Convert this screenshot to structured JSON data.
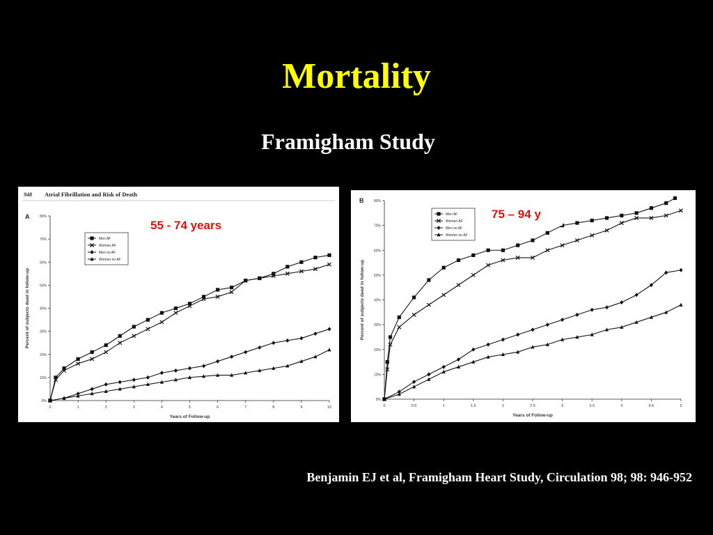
{
  "slide": {
    "title": "Mortality",
    "subtitle": "Framigham Study",
    "citation": "Benjamin EJ et al, Framigham Heart Study, Circulation 98; 98: 946-952",
    "title_color": "#ffff00",
    "label_color": "#e01010"
  },
  "chart_data": [
    {
      "type": "line",
      "panel": "A",
      "page_header": "948",
      "journal_title": "Atrial Fibrillation and Risk of Death",
      "annotation": "55 - 74 years",
      "xlabel": "Years of Follow-up",
      "ylabel": "Percent of subjects dead in follow-up",
      "xlim": [
        0,
        10
      ],
      "ylim": [
        0,
        80
      ],
      "xticks": [
        0,
        1,
        2,
        3,
        4,
        5,
        6,
        7,
        8,
        9,
        10
      ],
      "yticks": [
        "0%",
        "10%",
        "20%",
        "30%",
        "40%",
        "50%",
        "60%",
        "70%",
        "80%"
      ],
      "legend_position": "top-left",
      "series": [
        {
          "name": "Men AF",
          "marker": "square",
          "x": [
            0,
            0.2,
            0.5,
            1,
            1.5,
            2,
            2.5,
            3,
            3.5,
            4,
            4.5,
            5,
            5.5,
            6,
            6.5,
            7,
            7.5,
            8,
            8.5,
            9,
            9.5,
            10
          ],
          "y": [
            0,
            10,
            14,
            18,
            21,
            24,
            28,
            32,
            35,
            38,
            40,
            42,
            45,
            48,
            49,
            52,
            53,
            55,
            58,
            60,
            62,
            63
          ]
        },
        {
          "name": "Women AF",
          "marker": "x",
          "x": [
            0,
            0.2,
            0.5,
            1,
            1.5,
            2,
            2.5,
            3,
            3.5,
            4,
            4.5,
            5,
            5.5,
            6,
            6.5,
            7,
            7.5,
            8,
            8.5,
            9,
            9.5,
            10
          ],
          "y": [
            0,
            9,
            13,
            16,
            18,
            21,
            25,
            28,
            31,
            34,
            38,
            41,
            44,
            45,
            47,
            52,
            53,
            54,
            55,
            56,
            57,
            59
          ]
        },
        {
          "name": "Men no AF",
          "marker": "diamond",
          "x": [
            0,
            0.5,
            1,
            1.5,
            2,
            2.5,
            3,
            3.5,
            4,
            4.5,
            5,
            5.5,
            6,
            6.5,
            7,
            7.5,
            8,
            8.5,
            9,
            9.5,
            10
          ],
          "y": [
            0,
            1,
            3,
            5,
            7,
            8,
            9,
            10,
            12,
            13,
            14,
            15,
            17,
            19,
            21,
            23,
            25,
            26,
            27,
            29,
            31
          ]
        },
        {
          "name": "Women no AF",
          "marker": "triangle",
          "x": [
            0,
            0.5,
            1,
            1.5,
            2,
            2.5,
            3,
            3.5,
            4,
            4.5,
            5,
            5.5,
            6,
            6.5,
            7,
            7.5,
            8,
            8.5,
            9,
            9.5,
            10
          ],
          "y": [
            0,
            1,
            2,
            3,
            4,
            5,
            6,
            7,
            8,
            9,
            10,
            10.5,
            11,
            11,
            12,
            13,
            14,
            15,
            17,
            19,
            22
          ]
        }
      ]
    },
    {
      "type": "line",
      "panel": "B",
      "annotation": "75 – 94 y",
      "xlabel": "Years of Follow-up",
      "ylabel": "Percent of subjects dead in follow-up",
      "xlim": [
        0,
        5
      ],
      "ylim": [
        0,
        80
      ],
      "xticks": [
        "0",
        "0.5",
        "1",
        "1.5",
        "2",
        "2.5",
        "3",
        "3.5",
        "4",
        "4.5",
        "5"
      ],
      "yticks": [
        "0%",
        "10%",
        "20%",
        "30%",
        "40%",
        "50%",
        "60%",
        "70%",
        "80%"
      ],
      "legend_position": "top-left",
      "series": [
        {
          "name": "Men AF",
          "marker": "square",
          "x": [
            0,
            0.05,
            0.1,
            0.25,
            0.5,
            0.75,
            1,
            1.25,
            1.5,
            1.75,
            2,
            2.25,
            2.5,
            2.75,
            3,
            3.25,
            3.5,
            3.75,
            4,
            4.25,
            4.5,
            4.75,
            4.9
          ],
          "y": [
            0,
            15,
            25,
            33,
            41,
            48,
            53,
            56,
            58,
            60,
            60,
            62,
            64,
            67,
            70,
            71,
            72,
            73,
            74,
            75,
            77,
            79,
            81
          ]
        },
        {
          "name": "Women AF",
          "marker": "x",
          "x": [
            0,
            0.05,
            0.1,
            0.25,
            0.5,
            0.75,
            1,
            1.25,
            1.5,
            1.75,
            2,
            2.25,
            2.5,
            2.75,
            3,
            3.25,
            3.5,
            3.75,
            4,
            4.25,
            4.5,
            4.75,
            5
          ],
          "y": [
            0,
            12,
            22,
            29,
            34,
            38,
            42,
            46,
            50,
            54,
            56,
            57,
            57,
            60,
            62,
            64,
            66,
            68,
            71,
            73,
            73,
            74,
            76
          ]
        },
        {
          "name": "Men no AF",
          "marker": "diamond",
          "x": [
            0,
            0.25,
            0.5,
            0.75,
            1,
            1.25,
            1.5,
            1.75,
            2,
            2.25,
            2.5,
            2.75,
            3,
            3.25,
            3.5,
            3.75,
            4,
            4.25,
            4.5,
            4.75,
            5
          ],
          "y": [
            0,
            3,
            7,
            10,
            13,
            16,
            20,
            22,
            24,
            26,
            28,
            30,
            32,
            34,
            36,
            37,
            39,
            42,
            46,
            51,
            52
          ]
        },
        {
          "name": "Women no AF",
          "marker": "triangle",
          "x": [
            0,
            0.25,
            0.5,
            0.75,
            1,
            1.25,
            1.5,
            1.75,
            2,
            2.25,
            2.5,
            2.75,
            3,
            3.25,
            3.5,
            3.75,
            4,
            4.25,
            4.5,
            4.75,
            5
          ],
          "y": [
            0,
            2,
            5,
            8,
            11,
            13,
            15,
            17,
            18,
            19,
            21,
            22,
            24,
            25,
            26,
            28,
            29,
            31,
            33,
            35,
            38
          ]
        }
      ]
    }
  ]
}
